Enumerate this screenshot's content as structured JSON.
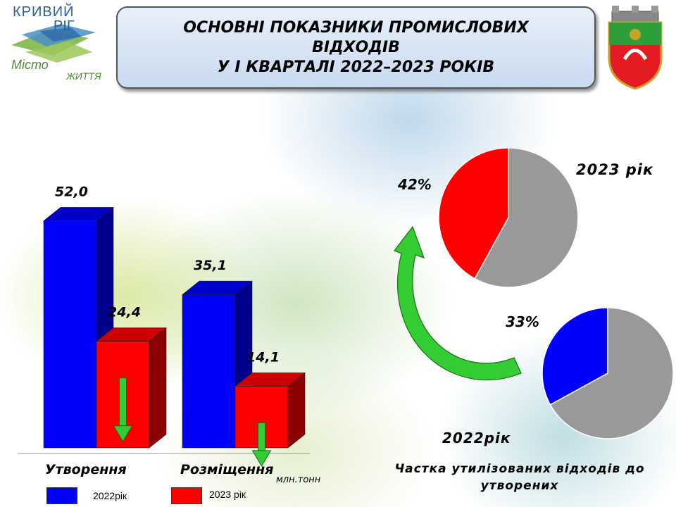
{
  "logo": {
    "line1": "КРИВИЙ",
    "line2": "РІГ",
    "line3": "Місто",
    "line4": "ЖИТТЯ"
  },
  "title": {
    "line1": "ОСНОВНІ ПОКАЗНИКИ  ПРОМИСЛОВИХ",
    "line2": "ВІДХОДІВ",
    "line3": "У І КВАРТАЛІ 2022–2023 РОКІВ"
  },
  "colors": {
    "series2022": "#0000ff",
    "series2023": "#ff0000",
    "grey": "#999999",
    "arrow_green": "#33cc33"
  },
  "chart_data": [
    {
      "type": "bar",
      "categories": [
        "Утворення",
        "Розміщення"
      ],
      "series": [
        {
          "name": "2022рік",
          "values": [
            52.0,
            35.1
          ],
          "value_labels": [
            "52,0",
            "35,1"
          ]
        },
        {
          "name": "2023 рік",
          "values": [
            24.4,
            14.1
          ],
          "value_labels": [
            "24,4",
            "14,1"
          ]
        }
      ],
      "unit_label": "млн.тонн",
      "legend": [
        "2022рік",
        "2023 рік"
      ],
      "legend_position": "bottom"
    },
    {
      "type": "pie",
      "year_label": "2023 рік",
      "slices": [
        {
          "label": "42%",
          "value": 42,
          "color": "#ff0000"
        },
        {
          "value": 58,
          "color": "#999999"
        }
      ]
    },
    {
      "type": "pie",
      "year_label": "2022рік",
      "slices": [
        {
          "label": "33%",
          "value": 33,
          "color": "#0000ff"
        },
        {
          "value": 67,
          "color": "#999999"
        }
      ]
    }
  ],
  "caption": "Частка утилізованих відходів до утворених"
}
